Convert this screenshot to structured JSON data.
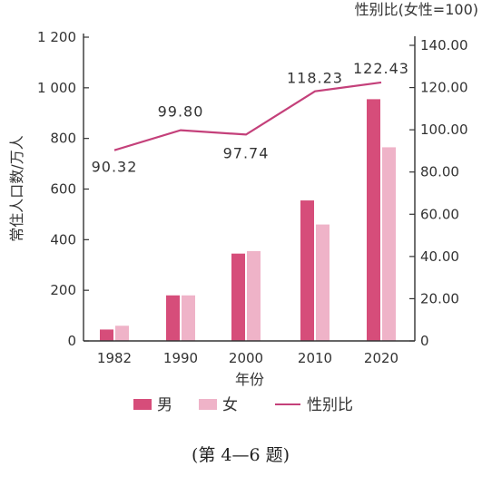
{
  "chart_data": {
    "type": "bar",
    "categories": [
      "1982",
      "1990",
      "2000",
      "2010",
      "2020"
    ],
    "series": [
      {
        "name": "男",
        "values": [
          45,
          180,
          345,
          555,
          955
        ],
        "color": "#d64d7a",
        "axis": "left"
      },
      {
        "name": "女",
        "values": [
          60,
          180,
          355,
          460,
          765
        ],
        "color": "#efb3c8",
        "axis": "left"
      },
      {
        "name": "性别比",
        "values": [
          90.32,
          99.8,
          97.74,
          118.23,
          122.43
        ],
        "color": "#c4407a",
        "type": "line",
        "axis": "right"
      }
    ],
    "ratio_labels": [
      "90.32",
      "99.80",
      "97.74",
      "118.23",
      "122.43"
    ],
    "xlabel": "年份",
    "ylabel": "常住人口数/万人",
    "y2label": "性别比(女性=100)",
    "ylim": [
      0,
      1200
    ],
    "y2lim": [
      0,
      140
    ],
    "yticks": [
      0,
      200,
      400,
      600,
      800,
      1000,
      1200
    ],
    "ytick_labels": [
      "0",
      "200",
      "400",
      "600",
      "800",
      "1 000",
      "1 200"
    ],
    "y2ticks": [
      0,
      20,
      40,
      60,
      80,
      100,
      120,
      140
    ],
    "y2tick_labels": [
      "0",
      "20.00",
      "40.00",
      "60.00",
      "80.00",
      "100.00",
      "120.00",
      "140.00"
    ],
    "legend": [
      {
        "label": "男",
        "kind": "bar",
        "color": "#d64d7a"
      },
      {
        "label": "女",
        "kind": "bar",
        "color": "#efb3c8"
      },
      {
        "label": "性别比",
        "kind": "line",
        "color": "#c4407a"
      }
    ],
    "legend_position": "bottom",
    "caption": "(第 4—6 题)"
  }
}
